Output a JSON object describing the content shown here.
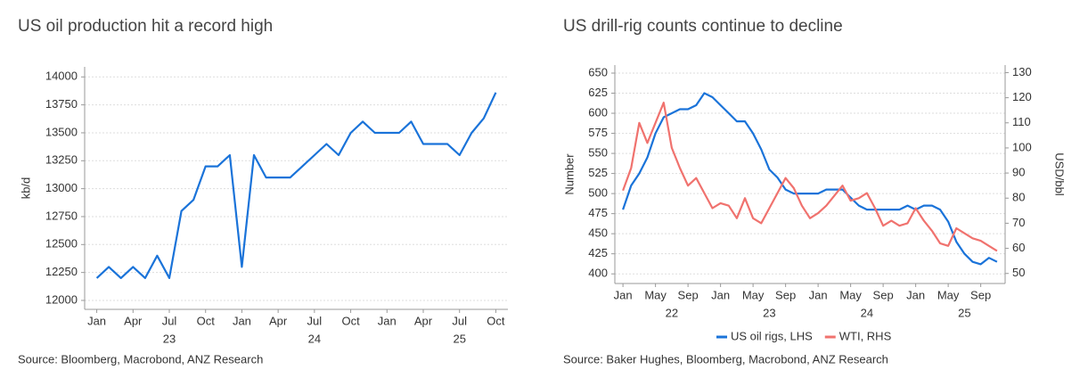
{
  "chart_data": [
    {
      "type": "line",
      "title": "US oil production hit a record high",
      "y_label": "kb/d",
      "x": [
        "2023-01",
        "2023-02",
        "2023-03",
        "2023-04",
        "2023-05",
        "2023-06",
        "2023-07",
        "2023-08",
        "2023-09",
        "2023-10",
        "2023-11",
        "2023-12",
        "2024-01",
        "2024-02",
        "2024-03",
        "2024-04",
        "2024-05",
        "2024-06",
        "2024-07",
        "2024-08",
        "2024-09",
        "2024-10",
        "2024-11",
        "2024-12",
        "2025-01",
        "2025-02",
        "2025-03",
        "2025-04",
        "2025-05",
        "2025-06",
        "2025-07",
        "2025-08",
        "2025-09",
        "2025-10"
      ],
      "series": [
        {
          "color": "#1a73d9",
          "values": [
            12200,
            12300,
            12200,
            12300,
            12200,
            12400,
            12200,
            12800,
            12900,
            13200,
            13200,
            13300,
            12300,
            13300,
            13100,
            13100,
            13100,
            13200,
            13300,
            13400,
            13300,
            13500,
            13600,
            13500,
            13500,
            13500,
            13600,
            13400,
            13400,
            13400,
            13300,
            13500,
            13630,
            13860
          ]
        }
      ],
      "xlim": [
        "2022-12",
        "2025-11"
      ],
      "ylim": [
        11920,
        14090
      ],
      "yticks": [
        12000,
        12250,
        12500,
        12750,
        13000,
        13250,
        13500,
        13750,
        14000
      ],
      "xticks": [
        {
          "value": "2023-01",
          "label": "Jan"
        },
        {
          "value": "2023-04",
          "label": "Apr"
        },
        {
          "value": "2023-07",
          "label": "Jul"
        },
        {
          "value": "2023-10",
          "label": "Oct"
        },
        {
          "value": "2024-01",
          "label": "Jan"
        },
        {
          "value": "2024-04",
          "label": "Apr"
        },
        {
          "value": "2024-07",
          "label": "Jul"
        },
        {
          "value": "2024-10",
          "label": "Oct"
        },
        {
          "value": "2025-01",
          "label": "Jan"
        },
        {
          "value": "2025-04",
          "label": "Apr"
        },
        {
          "value": "2025-07",
          "label": "Jul"
        },
        {
          "value": "2025-10",
          "label": "Oct"
        }
      ],
      "year_ticks": [
        {
          "value": "2023-07",
          "label": "23"
        },
        {
          "value": "2024-07",
          "label": "24"
        },
        {
          "value": "2025-07",
          "label": "25"
        }
      ],
      "grid": true,
      "source": "Source: Bloomberg, Macrobond, ANZ Research"
    },
    {
      "type": "line",
      "title": "US drill-rig counts continue to decline",
      "y_label": "Number",
      "y2_label": "USD/bbl",
      "x": [
        "2022-01",
        "2022-02",
        "2022-03",
        "2022-04",
        "2022-05",
        "2022-06",
        "2022-07",
        "2022-08",
        "2022-09",
        "2022-10",
        "2022-11",
        "2022-12",
        "2023-01",
        "2023-02",
        "2023-03",
        "2023-04",
        "2023-05",
        "2023-06",
        "2023-07",
        "2023-08",
        "2023-09",
        "2023-10",
        "2023-11",
        "2023-12",
        "2024-01",
        "2024-02",
        "2024-03",
        "2024-04",
        "2024-05",
        "2024-06",
        "2024-07",
        "2024-08",
        "2024-09",
        "2024-10",
        "2024-11",
        "2024-12",
        "2025-01",
        "2025-02",
        "2025-03",
        "2025-04",
        "2025-05",
        "2025-06",
        "2025-07",
        "2025-08",
        "2025-09",
        "2025-10",
        "2025-11"
      ],
      "series": [
        {
          "name": "US oil rigs, LHS",
          "color": "#1a73d9",
          "values": [
            480,
            510,
            525,
            545,
            575,
            595,
            600,
            605,
            605,
            610,
            625,
            620,
            610,
            600,
            590,
            590,
            575,
            555,
            530,
            520,
            505,
            500,
            500,
            500,
            500,
            505,
            505,
            505,
            495,
            485,
            480,
            480,
            480,
            480,
            480,
            485,
            480,
            485,
            485,
            480,
            465,
            440,
            425,
            415,
            412,
            420,
            415
          ]
        },
        {
          "name": "WTI, RHS",
          "color": "#f0726e",
          "axis": "y2",
          "values": [
            83,
            92,
            110,
            102,
            110,
            118,
            100,
            92,
            85,
            88,
            82,
            76,
            78,
            77,
            72,
            80,
            72,
            70,
            76,
            82,
            88,
            84,
            77,
            72,
            74,
            77,
            81,
            85,
            79,
            80,
            82,
            76,
            69,
            71,
            69,
            70,
            76,
            71,
            67,
            62,
            61,
            68,
            66,
            64,
            63,
            61,
            59
          ]
        }
      ],
      "xlim": [
        "2021-12",
        "2025-12"
      ],
      "ylim": [
        388,
        660
      ],
      "y2lim": [
        46,
        133
      ],
      "yticks": [
        400,
        425,
        450,
        475,
        500,
        525,
        550,
        575,
        600,
        625,
        650
      ],
      "y2ticks": [
        50,
        60,
        70,
        80,
        90,
        100,
        110,
        120,
        130
      ],
      "xticks": [
        {
          "value": "2022-01",
          "label": "Jan"
        },
        {
          "value": "2022-05",
          "label": "May"
        },
        {
          "value": "2022-09",
          "label": "Sep"
        },
        {
          "value": "2023-01",
          "label": "Jan"
        },
        {
          "value": "2023-05",
          "label": "May"
        },
        {
          "value": "2023-09",
          "label": "Sep"
        },
        {
          "value": "2024-01",
          "label": "Jan"
        },
        {
          "value": "2024-05",
          "label": "May"
        },
        {
          "value": "2024-09",
          "label": "Sep"
        },
        {
          "value": "2025-01",
          "label": "Jan"
        },
        {
          "value": "2025-05",
          "label": "May"
        },
        {
          "value": "2025-09",
          "label": "Sep"
        }
      ],
      "year_ticks": [
        {
          "value": "2022-07",
          "label": "22"
        },
        {
          "value": "2023-07",
          "label": "23"
        },
        {
          "value": "2024-07",
          "label": "24"
        },
        {
          "value": "2025-07",
          "label": "25"
        }
      ],
      "grid": true,
      "legend": "bottom",
      "source": "Source: Baker Hughes, Bloomberg, Macrobond, ANZ Research"
    }
  ]
}
